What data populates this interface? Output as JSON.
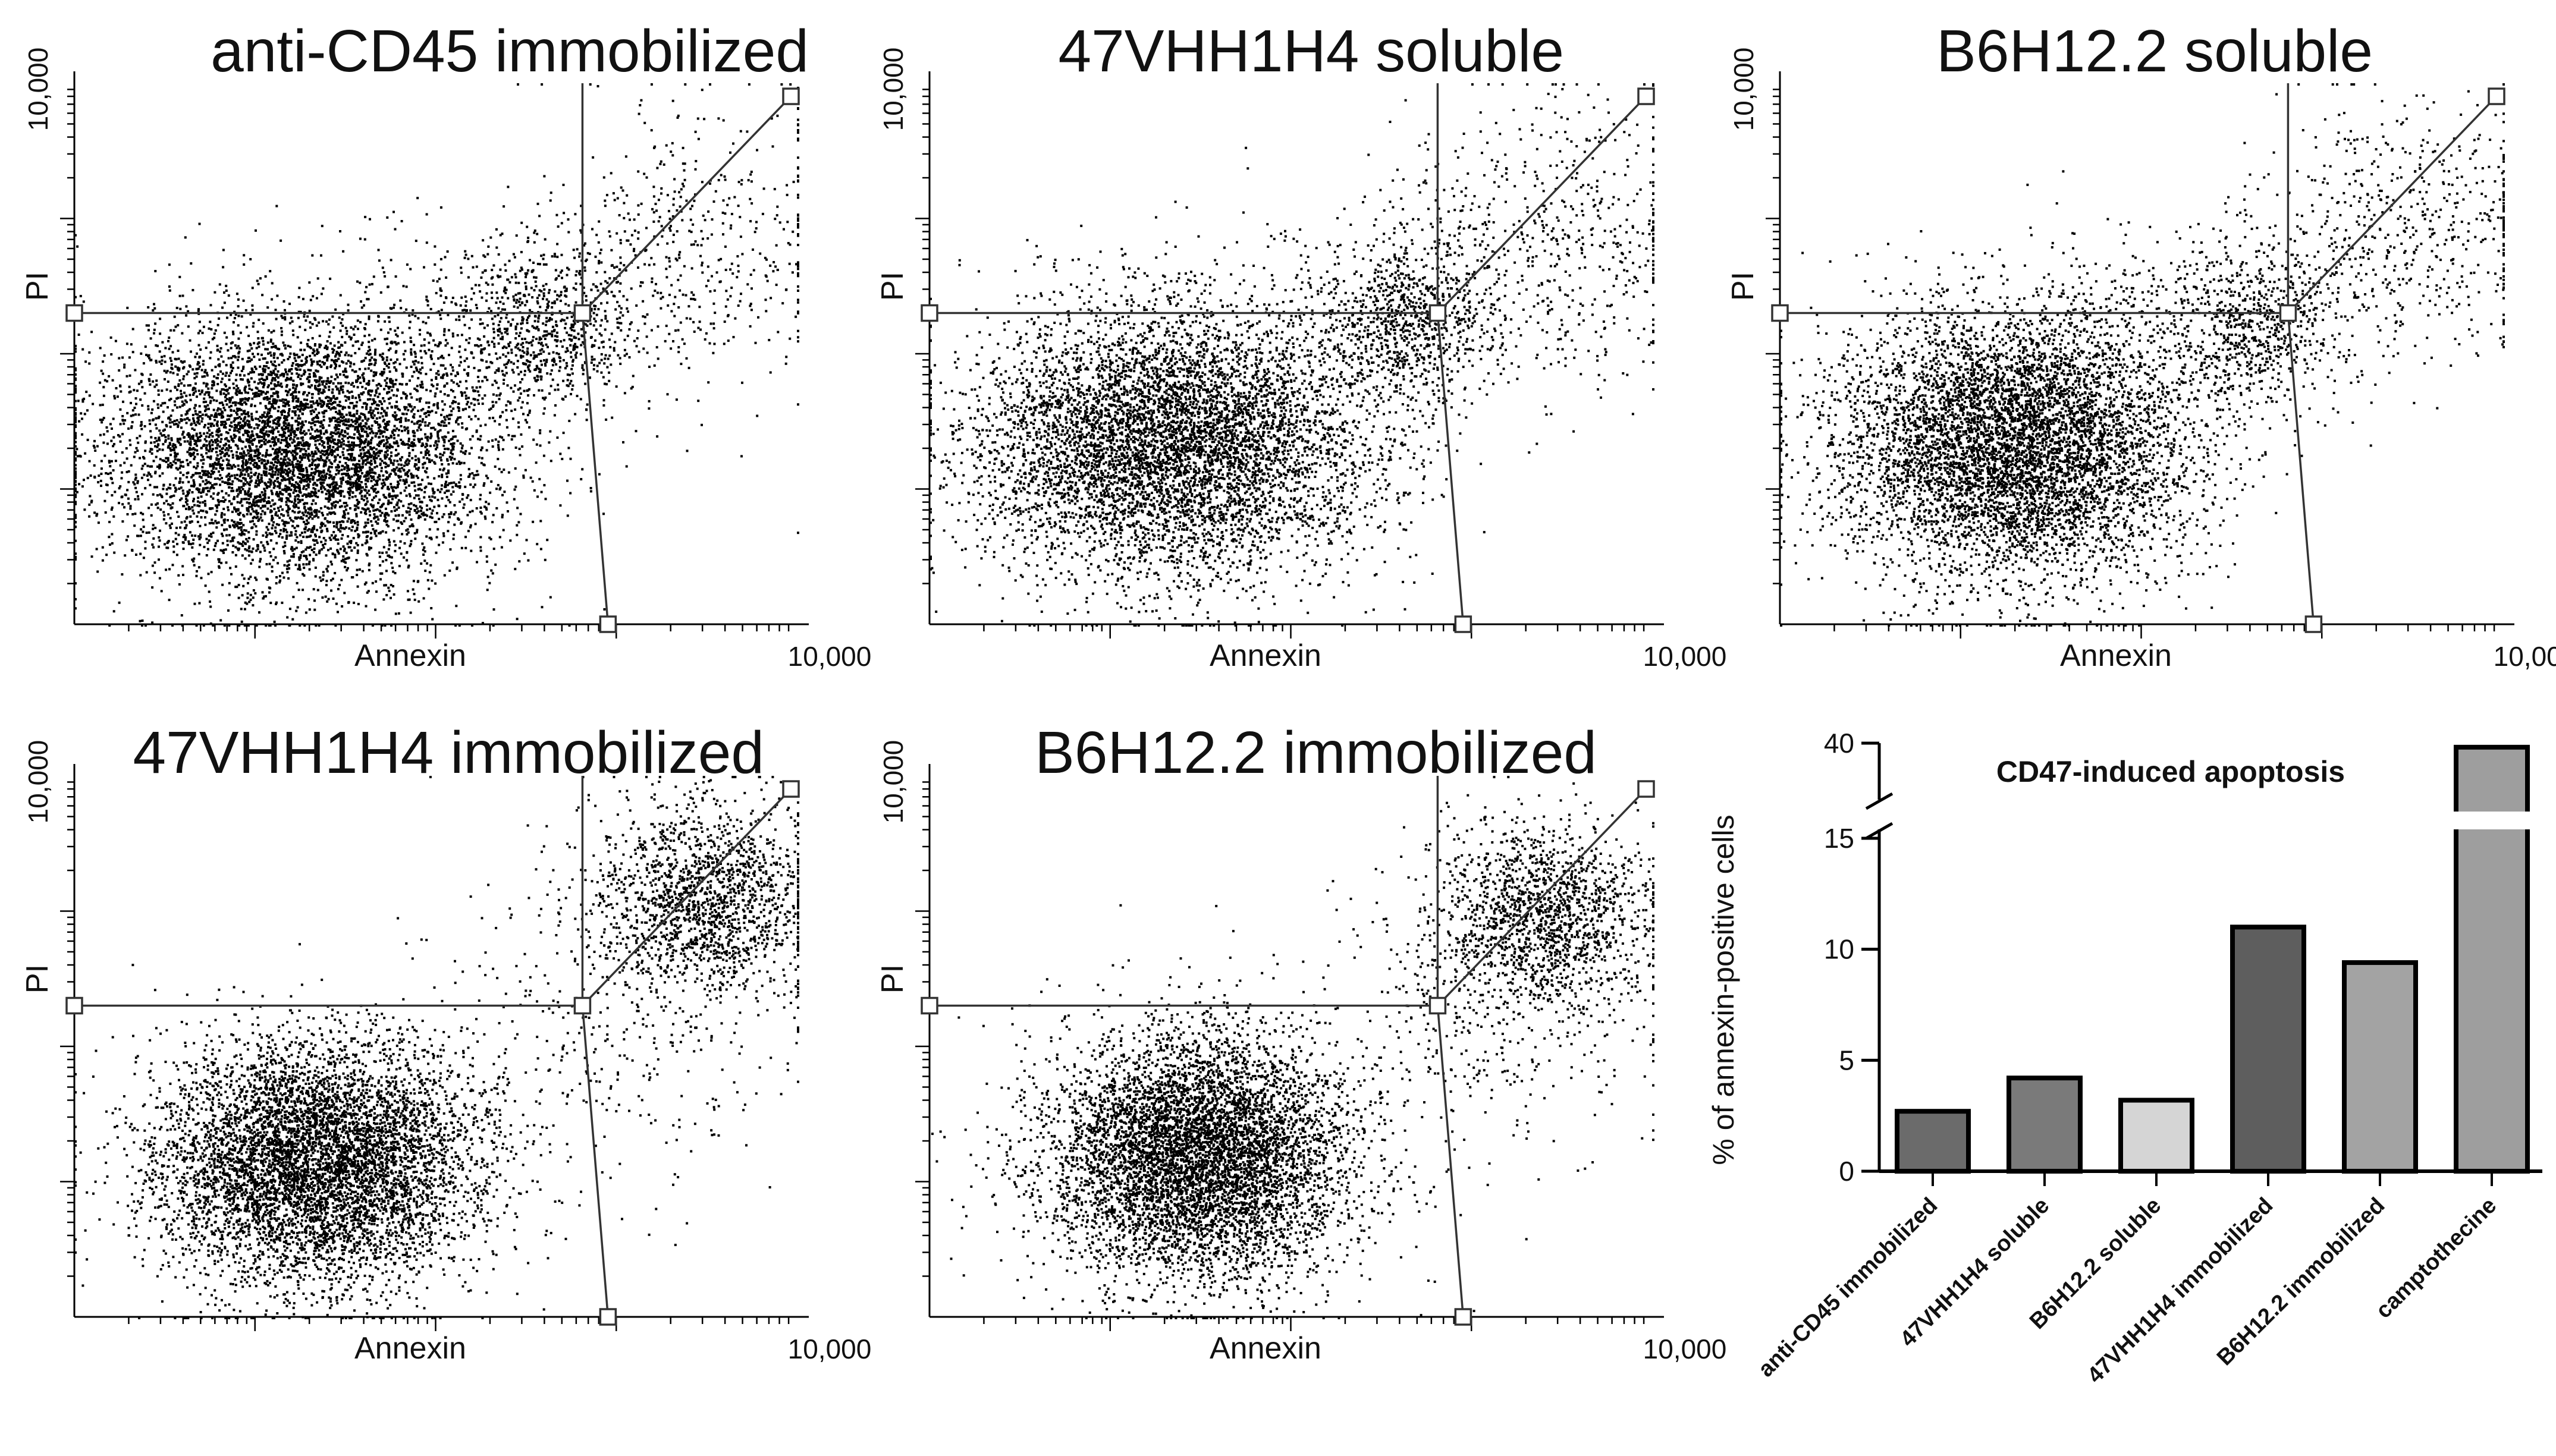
{
  "chart_data": [
    {
      "type": "scatter",
      "title": "anti-CD45 immobilized",
      "xlabel": "Annexin",
      "ylabel": "PI",
      "xtick_max_label": "10,000",
      "ytick_max_label": "10,000",
      "xlim": [
        1,
        10000
      ],
      "ylim": [
        1,
        10000
      ],
      "scale": "log",
      "gates": {
        "x_threshold": 650,
        "y_threshold": 200,
        "upper_corner": [
          10000,
          8000
        ],
        "lower_corner": [
          900,
          1
        ]
      },
      "clusters": [
        {
          "x_center": 18,
          "y_center": 20,
          "x_spread": 0.55,
          "y_spread": 0.5,
          "count": 6500
        },
        {
          "x_center": 400,
          "y_center": 150,
          "x_spread": 0.25,
          "y_spread": 0.28,
          "count": 700
        },
        {
          "x_center": 2500,
          "y_center": 600,
          "x_spread": 0.45,
          "y_spread": 0.55,
          "count": 500
        },
        {
          "x_center": 200,
          "y_center": 300,
          "x_spread": 0.5,
          "y_spread": 0.35,
          "count": 200
        }
      ]
    },
    {
      "type": "scatter",
      "title": "47VHH1H4 soluble",
      "xlabel": "Annexin",
      "ylabel": "PI",
      "xtick_max_label": "10,000",
      "ytick_max_label": "10,000",
      "xlim": [
        1,
        10000
      ],
      "ylim": [
        1,
        10000
      ],
      "scale": "log",
      "gates": {
        "x_threshold": 650,
        "y_threshold": 200,
        "upper_corner": [
          10000,
          8000
        ],
        "lower_corner": [
          900,
          1
        ]
      },
      "clusters": [
        {
          "x_center": 22,
          "y_center": 22,
          "x_spread": 0.55,
          "y_spread": 0.5,
          "count": 6500
        },
        {
          "x_center": 450,
          "y_center": 170,
          "x_spread": 0.25,
          "y_spread": 0.3,
          "count": 750
        },
        {
          "x_center": 2800,
          "y_center": 700,
          "x_spread": 0.45,
          "y_spread": 0.55,
          "count": 600
        },
        {
          "x_center": 200,
          "y_center": 300,
          "x_spread": 0.5,
          "y_spread": 0.35,
          "count": 200
        }
      ]
    },
    {
      "type": "scatter",
      "title": "B6H12.2 soluble",
      "xlabel": "Annexin",
      "ylabel": "PI",
      "xtick_max_label": "10,000",
      "ytick_max_label": "10,000",
      "xlim": [
        1,
        10000
      ],
      "ylim": [
        1,
        10000
      ],
      "scale": "log",
      "gates": {
        "x_threshold": 650,
        "y_threshold": 200,
        "upper_corner": [
          10000,
          8000
        ],
        "lower_corner": [
          900,
          1
        ]
      },
      "clusters": [
        {
          "x_center": 20,
          "y_center": 22,
          "x_spread": 0.5,
          "y_spread": 0.5,
          "count": 6500
        },
        {
          "x_center": 420,
          "y_center": 150,
          "x_spread": 0.25,
          "y_spread": 0.28,
          "count": 650
        },
        {
          "x_center": 2800,
          "y_center": 800,
          "x_spread": 0.45,
          "y_spread": 0.5,
          "count": 600
        },
        {
          "x_center": 200,
          "y_center": 300,
          "x_spread": 0.5,
          "y_spread": 0.35,
          "count": 200
        }
      ]
    },
    {
      "type": "scatter",
      "title": "47VHH1H4 immobilized",
      "xlabel": "Annexin",
      "ylabel": "PI",
      "xtick_max_label": "10,000",
      "ytick_max_label": "10,000",
      "xlim": [
        1,
        10000
      ],
      "ylim": [
        1,
        10000
      ],
      "scale": "log",
      "gates": {
        "x_threshold": 650,
        "y_threshold": 200,
        "upper_corner": [
          10000,
          8000
        ],
        "lower_corner": [
          900,
          1
        ]
      },
      "clusters": [
        {
          "x_center": 22,
          "y_center": 14,
          "x_spread": 0.45,
          "y_spread": 0.45,
          "count": 6500
        },
        {
          "x_center": 3000,
          "y_center": 1200,
          "x_spread": 0.3,
          "y_spread": 0.35,
          "count": 1600
        },
        {
          "x_center": 1200,
          "y_center": 200,
          "x_spread": 0.5,
          "y_spread": 0.6,
          "count": 400
        }
      ]
    },
    {
      "type": "scatter",
      "title": "B6H12.2 immobilized",
      "xlabel": "Annexin",
      "ylabel": "PI",
      "xtick_max_label": "10,000",
      "ytick_max_label": "10,000",
      "xlim": [
        1,
        10000
      ],
      "ylim": [
        1,
        10000
      ],
      "scale": "log",
      "gates": {
        "x_threshold": 650,
        "y_threshold": 200,
        "upper_corner": [
          10000,
          8000
        ],
        "lower_corner": [
          900,
          1
        ]
      },
      "clusters": [
        {
          "x_center": 30,
          "y_center": 16,
          "x_spread": 0.42,
          "y_spread": 0.45,
          "count": 6500
        },
        {
          "x_center": 2500,
          "y_center": 900,
          "x_spread": 0.3,
          "y_spread": 0.35,
          "count": 1500
        },
        {
          "x_center": 1200,
          "y_center": 200,
          "x_spread": 0.5,
          "y_spread": 0.6,
          "count": 400
        }
      ]
    },
    {
      "type": "bar",
      "title": "CD47-induced apoptosis",
      "ylabel": "% of annexin-positive cells",
      "categories": [
        "anti-CD45 immobilized",
        "47VHH1H4 soluble",
        "B6H12.2 soluble",
        "47VHH1H4 immobilized",
        "B6H12.2 immobilized",
        "camptothecine"
      ],
      "values": [
        2.7,
        4.2,
        3.2,
        11.0,
        9.4,
        38
      ],
      "colors": [
        "#6b6b6b",
        "#7a7a7a",
        "#d5d5d5",
        "#5e5e5e",
        "#a3a3a3",
        "#9e9e9e"
      ],
      "yticks": [
        0,
        5,
        10,
        15,
        40
      ],
      "axis_break": [
        15,
        40
      ],
      "ylim": [
        0,
        40
      ]
    }
  ]
}
